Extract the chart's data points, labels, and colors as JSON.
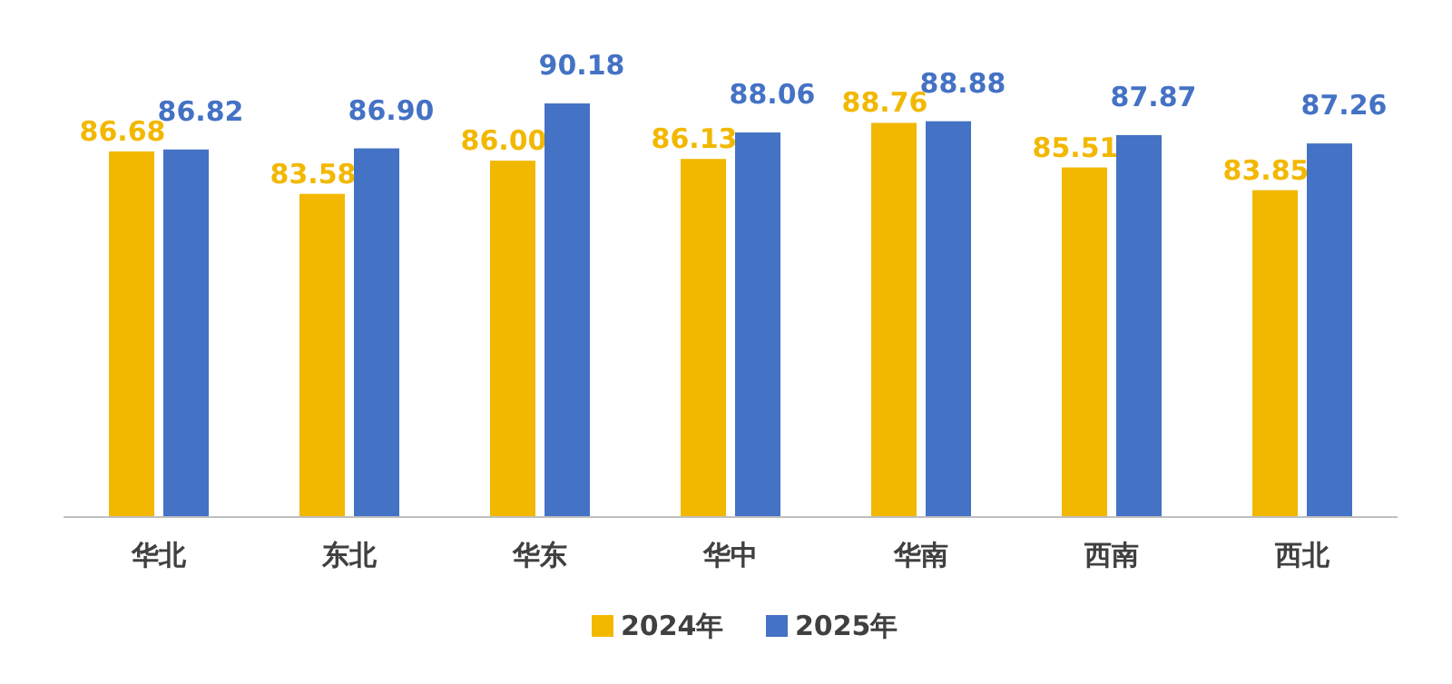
{
  "chart_data": {
    "type": "bar",
    "categories": [
      "华北",
      "东北",
      "华东",
      "华中",
      "华南",
      "西南",
      "西北"
    ],
    "series": [
      {
        "name": "2024年",
        "color": "#f2b800",
        "values": [
          86.68,
          83.58,
          86.0,
          86.13,
          88.76,
          85.51,
          83.85
        ],
        "value_labels": [
          "86.68",
          "83.58",
          "86.00",
          "86.13",
          "88.76",
          "85.51",
          "83.85"
        ]
      },
      {
        "name": "2025年",
        "color": "#4472c4",
        "values": [
          86.82,
          86.9,
          90.18,
          88.06,
          88.88,
          87.87,
          87.26
        ],
        "value_labels": [
          "86.82",
          "86.90",
          "90.18",
          "88.06",
          "88.88",
          "87.87",
          "87.26"
        ]
      }
    ],
    "ylim": [
      60,
      90.18
    ],
    "legend": "bottom"
  }
}
